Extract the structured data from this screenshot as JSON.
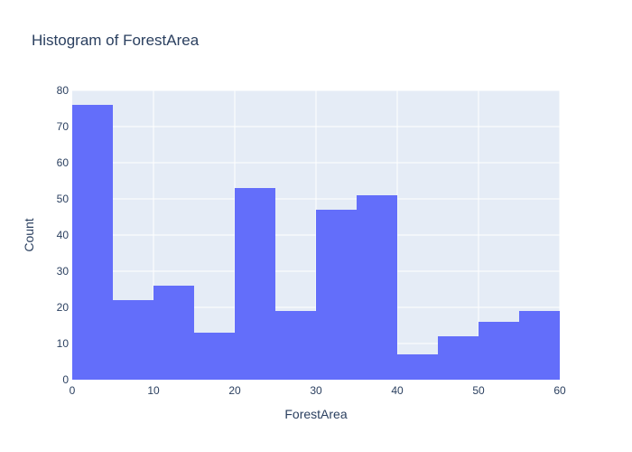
{
  "chart_data": {
    "type": "bar",
    "subtype": "histogram",
    "title": "Histogram of ForestArea",
    "xlabel": "ForestArea",
    "ylabel": "Count",
    "bin_width": 5,
    "bins": [
      {
        "x0": 0,
        "x1": 5,
        "count": 76
      },
      {
        "x0": 5,
        "x1": 10,
        "count": 22
      },
      {
        "x0": 10,
        "x1": 15,
        "count": 26
      },
      {
        "x0": 15,
        "x1": 20,
        "count": 13
      },
      {
        "x0": 20,
        "x1": 25,
        "count": 53
      },
      {
        "x0": 25,
        "x1": 30,
        "count": 19
      },
      {
        "x0": 30,
        "x1": 35,
        "count": 47
      },
      {
        "x0": 35,
        "x1": 40,
        "count": 51
      },
      {
        "x0": 40,
        "x1": 45,
        "count": 7
      },
      {
        "x0": 45,
        "x1": 50,
        "count": 12
      },
      {
        "x0": 50,
        "x1": 55,
        "count": 16
      },
      {
        "x0": 55,
        "x1": 60,
        "count": 19
      }
    ],
    "xlim": [
      0,
      60
    ],
    "ylim": [
      0,
      80
    ],
    "xticks": [
      0,
      10,
      20,
      30,
      40,
      50,
      60
    ],
    "yticks": [
      0,
      10,
      20,
      30,
      40,
      50,
      60,
      70,
      80
    ],
    "grid": true,
    "legend": false,
    "colors": {
      "bar": "#636efa",
      "plot_background": "#e5ecf6",
      "gridline": "#ffffff",
      "text": "#2a3f5f"
    }
  }
}
